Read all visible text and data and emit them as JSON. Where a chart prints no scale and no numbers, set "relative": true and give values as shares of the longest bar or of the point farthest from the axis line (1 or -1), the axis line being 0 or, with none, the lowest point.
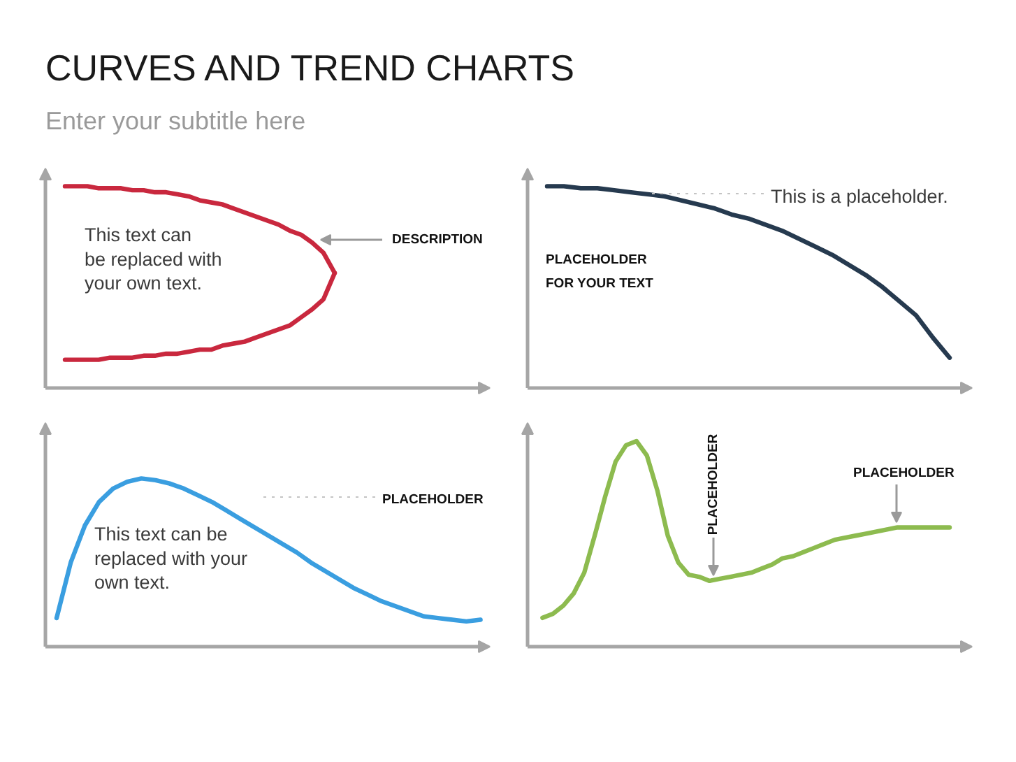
{
  "chart_data": [
    {
      "type": "line",
      "title": "CURVES AND TREND CHARTS",
      "subtitle": "Enter your subtitle here",
      "relative": true,
      "categories": [
        null,
        null,
        null,
        null,
        null,
        null,
        null,
        null,
        null,
        null,
        null,
        null,
        null,
        null,
        null,
        null,
        null,
        null,
        null,
        null,
        null,
        null,
        null,
        null,
        null
      ],
      "series": [
        {
          "color": "#c9283e",
          "values": [
            1,
            1,
            1,
            0.99,
            0.99,
            0.99,
            0.98,
            0.98,
            0.97,
            0.97,
            0.96,
            0.95,
            0.93,
            0.92,
            0.91,
            0.89,
            0.87,
            0.85,
            0.83,
            0.81,
            0.78,
            0.76,
            0.72,
            0.67,
            0.57
          ]
        },
        {
          "color": "#c9283e",
          "values": [
            0.14,
            0.14,
            0.14,
            0.14,
            0.15,
            0.15,
            0.15,
            0.16,
            0.16,
            0.17,
            0.17,
            0.18,
            0.19,
            0.19,
            0.21,
            0.22,
            0.23,
            0.25,
            0.27,
            0.29,
            0.31,
            0.35,
            0.39,
            0.44,
            0.57
          ]
        }
      ],
      "annotations": [
        "This text can\nbe replaced with\nyour own text.",
        "DESCRIPTION"
      ]
    },
    {
      "type": "line",
      "relative": true,
      "categories": [
        null,
        null,
        null,
        null,
        null,
        null,
        null,
        null,
        null,
        null,
        null,
        null,
        null,
        null,
        null,
        null,
        null,
        null,
        null,
        null,
        null,
        null,
        null,
        null,
        null
      ],
      "values": [
        1,
        1,
        0.99,
        0.99,
        0.98,
        0.97,
        0.96,
        0.95,
        0.93,
        0.91,
        0.89,
        0.86,
        0.84,
        0.81,
        0.78,
        0.74,
        0.7,
        0.66,
        0.61,
        0.56,
        0.5,
        0.43,
        0.36,
        0.25,
        0.15
      ],
      "color": "#263a4f",
      "annotations": [
        "This is a placeholder.",
        "PLACEHOLDER\nFOR YOUR TEXT"
      ]
    },
    {
      "type": "line",
      "relative": true,
      "categories": [
        null,
        null,
        null,
        null,
        null,
        null,
        null,
        null,
        null,
        null,
        null,
        null,
        null,
        null,
        null,
        null,
        null,
        null,
        null,
        null,
        null,
        null,
        null,
        null,
        null,
        null,
        null,
        null,
        null,
        null,
        null
      ],
      "values": [
        0.17,
        0.5,
        0.72,
        0.86,
        0.94,
        0.98,
        1,
        0.99,
        0.97,
        0.94,
        0.9,
        0.86,
        0.81,
        0.76,
        0.71,
        0.66,
        0.61,
        0.56,
        0.5,
        0.45,
        0.4,
        0.35,
        0.31,
        0.27,
        0.24,
        0.21,
        0.18,
        0.17,
        0.16,
        0.15,
        0.16
      ],
      "color": "#3a9ee0",
      "annotations": [
        "PLACEHOLDER",
        "This text can be\nreplaced with your\nown text."
      ]
    },
    {
      "type": "line",
      "relative": true,
      "categories": [
        null,
        null,
        null,
        null,
        null,
        null,
        null,
        null,
        null,
        null,
        null,
        null,
        null,
        null,
        null,
        null,
        null,
        null,
        null,
        null,
        null,
        null,
        null,
        null,
        null,
        null,
        null,
        null,
        null,
        null,
        null,
        null,
        null,
        null,
        null,
        null,
        null,
        null,
        null,
        null
      ],
      "values": [
        0.14,
        0.16,
        0.2,
        0.26,
        0.36,
        0.54,
        0.73,
        0.9,
        0.98,
        1,
        0.93,
        0.76,
        0.54,
        0.41,
        0.35,
        0.34,
        0.32,
        0.33,
        0.34,
        0.35,
        0.36,
        0.38,
        0.4,
        0.43,
        0.44,
        0.46,
        0.48,
        0.5,
        0.52,
        0.53,
        0.54,
        0.55,
        0.56,
        0.57,
        0.58,
        0.58,
        0.58,
        0.58,
        0.58,
        0.58
      ],
      "color": "#8dbb4f",
      "annotations": [
        "PLACEHOLDER",
        "PLACEHOLDER"
      ]
    }
  ]
}
